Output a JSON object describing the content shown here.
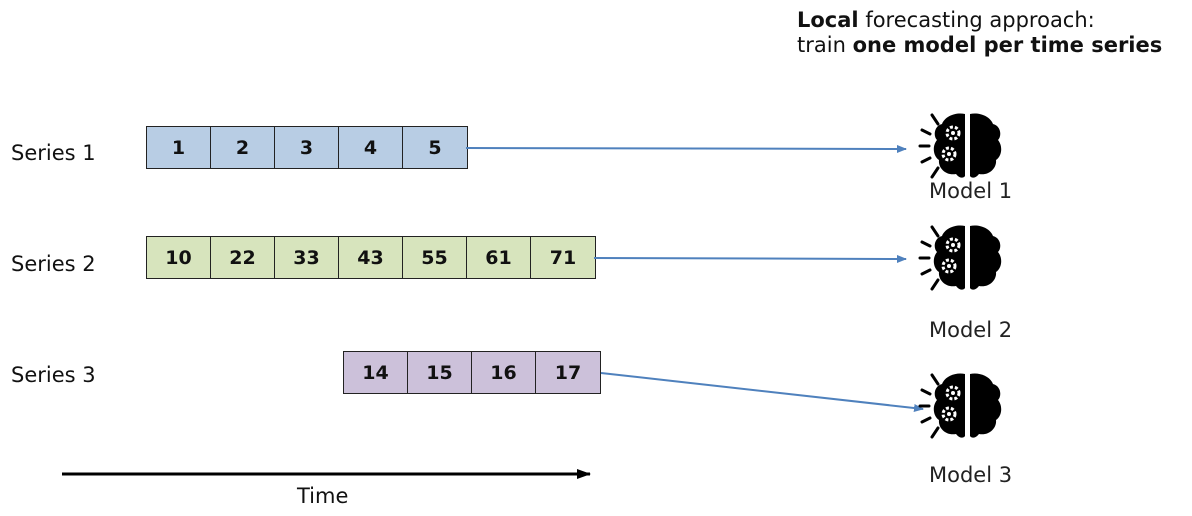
{
  "title": {
    "line1_bold": "Local",
    "line1_rest": " forecasting approach:",
    "line2_pre": "train ",
    "line2_bold": "one model per time series"
  },
  "series": [
    {
      "label": "Series 1",
      "values": [
        "1",
        "2",
        "3",
        "4",
        "5"
      ],
      "color": "#b8cde4"
    },
    {
      "label": "Series 2",
      "values": [
        "10",
        "22",
        "33",
        "43",
        "55",
        "61",
        "71"
      ],
      "color": "#d7e4bd"
    },
    {
      "label": "Series 3",
      "values": [
        "14",
        "15",
        "16",
        "17"
      ],
      "color": "#ccc1da"
    }
  ],
  "models": [
    {
      "label": "Model 1",
      "icon": "brain-gear-icon"
    },
    {
      "label": "Model 2",
      "icon": "brain-gear-icon"
    },
    {
      "label": "Model 3",
      "icon": "brain-gear-icon"
    }
  ],
  "time_label": "Time",
  "colors": {
    "arrow": "#4f81bd",
    "axis": "#000000"
  }
}
